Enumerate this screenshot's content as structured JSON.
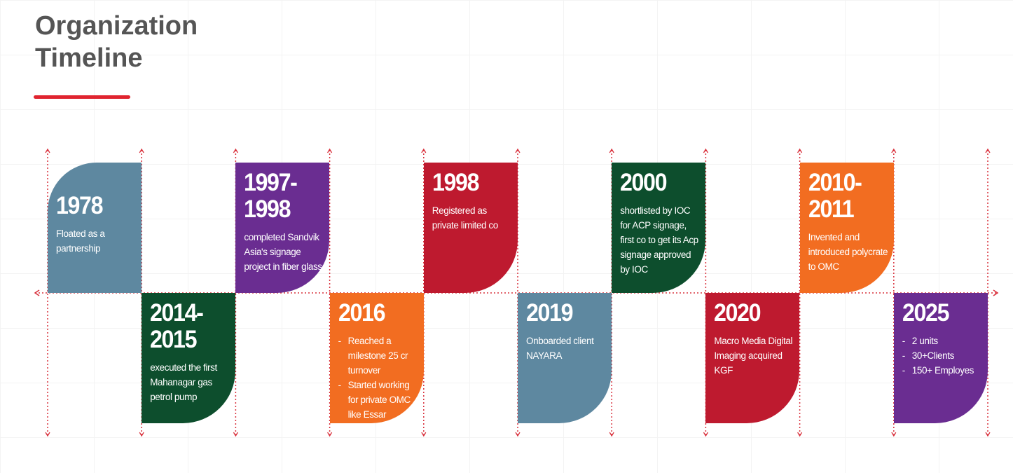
{
  "header": {
    "title": "Organization Timeline"
  },
  "timeline": [
    {
      "year": "1978",
      "text": "Floated as a partnership",
      "color": "#5e88a0"
    },
    {
      "year": "2014-2015",
      "text": "executed the first Mahanagar gas petrol pump",
      "color": "#0d4e2d"
    },
    {
      "year": "1997-1998",
      "text": "completed Sandvik Asia's signage project in fiber glass",
      "color": "#6a2d91"
    },
    {
      "year": "2016",
      "points": [
        "Reached a milestone 25 cr turnover",
        "Started working for private OMC like Essar"
      ],
      "color": "#f26d21"
    },
    {
      "year": "1998",
      "text": "Registered as private limited co",
      "color": "#be1a2f"
    },
    {
      "year": "2019",
      "text": "Onboarded client NAYARA",
      "color": "#5e88a0"
    },
    {
      "year": "2000",
      "text": "shortlisted by IOC for ACP signage, first co to get its Acp signage approved by IOC",
      "color": "#0d4e2d"
    },
    {
      "year": "2020",
      "text": "Macro Media Digital Imaging acquired KGF",
      "color": "#be1a2f"
    },
    {
      "year": "2010-2011",
      "text": "Invented and introduced polycrate to OMC",
      "color": "#f26d21"
    },
    {
      "year": "2025",
      "points": [
        "2 units",
        "30+Clients",
        "150+ Employes"
      ],
      "color": "#6a2d91"
    }
  ]
}
